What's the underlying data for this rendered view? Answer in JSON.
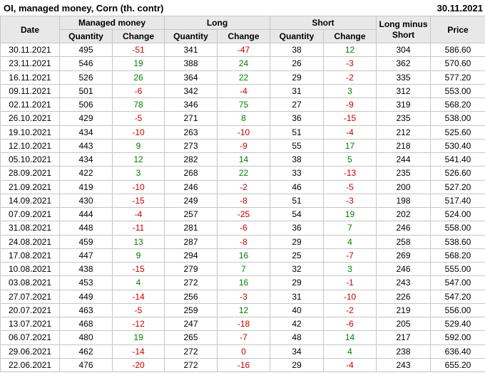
{
  "title": "OI, managed money, Corn (th. contr)",
  "report_date": "30.11.2021",
  "colors": {
    "positive_change": "#008000",
    "negative_change": "#cc0000",
    "header_background": "#e8e8e8",
    "grid_border": "#c6c6c6"
  },
  "header": {
    "date": "Date",
    "managed_money": "Managed money",
    "long": "Long",
    "short": "Short",
    "long_minus_short": "Long minus Short",
    "price": "Price",
    "quantity": "Quantity",
    "change": "Change"
  },
  "rows": [
    {
      "date": "30.11.2021",
      "mm_quantity": "495",
      "mm_change": "-51",
      "long_quantity": "341",
      "long_change": "-47",
      "short_quantity": "38",
      "short_change": "12",
      "long_minus_short": "304",
      "price": "586.60"
    },
    {
      "date": "23.11.2021",
      "mm_quantity": "546",
      "mm_change": "19",
      "long_quantity": "388",
      "long_change": "24",
      "short_quantity": "26",
      "short_change": "-3",
      "long_minus_short": "362",
      "price": "570.60"
    },
    {
      "date": "16.11.2021",
      "mm_quantity": "526",
      "mm_change": "26",
      "long_quantity": "364",
      "long_change": "22",
      "short_quantity": "29",
      "short_change": "-2",
      "long_minus_short": "335",
      "price": "577.20"
    },
    {
      "date": "09.11.2021",
      "mm_quantity": "501",
      "mm_change": "-6",
      "long_quantity": "342",
      "long_change": "-4",
      "short_quantity": "31",
      "short_change": "3",
      "long_minus_short": "312",
      "price": "553.00"
    },
    {
      "date": "02.11.2021",
      "mm_quantity": "506",
      "mm_change": "78",
      "long_quantity": "346",
      "long_change": "75",
      "short_quantity": "27",
      "short_change": "-9",
      "long_minus_short": "319",
      "price": "568.20"
    },
    {
      "date": "26.10.2021",
      "mm_quantity": "429",
      "mm_change": "-5",
      "long_quantity": "271",
      "long_change": "8",
      "short_quantity": "36",
      "short_change": "-15",
      "long_minus_short": "235",
      "price": "538.00"
    },
    {
      "date": "19.10.2021",
      "mm_quantity": "434",
      "mm_change": "-10",
      "long_quantity": "263",
      "long_change": "-10",
      "short_quantity": "51",
      "short_change": "-4",
      "long_minus_short": "212",
      "price": "525.60"
    },
    {
      "date": "12.10.2021",
      "mm_quantity": "443",
      "mm_change": "9",
      "long_quantity": "273",
      "long_change": "-9",
      "short_quantity": "55",
      "short_change": "17",
      "long_minus_short": "218",
      "price": "530.40"
    },
    {
      "date": "05.10.2021",
      "mm_quantity": "434",
      "mm_change": "12",
      "long_quantity": "282",
      "long_change": "14",
      "short_quantity": "38",
      "short_change": "5",
      "long_minus_short": "244",
      "price": "541.40"
    },
    {
      "date": "28.09.2021",
      "mm_quantity": "422",
      "mm_change": "3",
      "long_quantity": "268",
      "long_change": "22",
      "short_quantity": "33",
      "short_change": "-13",
      "long_minus_short": "235",
      "price": "526.60"
    },
    {
      "date": "21.09.2021",
      "mm_quantity": "419",
      "mm_change": "-10",
      "long_quantity": "246",
      "long_change": "-2",
      "short_quantity": "46",
      "short_change": "-5",
      "long_minus_short": "200",
      "price": "527.20"
    },
    {
      "date": "14.09.2021",
      "mm_quantity": "430",
      "mm_change": "-15",
      "long_quantity": "249",
      "long_change": "-8",
      "short_quantity": "51",
      "short_change": "-3",
      "long_minus_short": "198",
      "price": "517.40"
    },
    {
      "date": "07.09.2021",
      "mm_quantity": "444",
      "mm_change": "-4",
      "long_quantity": "257",
      "long_change": "-25",
      "short_quantity": "54",
      "short_change": "19",
      "long_minus_short": "202",
      "price": "524.00"
    },
    {
      "date": "31.08.2021",
      "mm_quantity": "448",
      "mm_change": "-11",
      "long_quantity": "281",
      "long_change": "-6",
      "short_quantity": "36",
      "short_change": "7",
      "long_minus_short": "246",
      "price": "558.00"
    },
    {
      "date": "24.08.2021",
      "mm_quantity": "459",
      "mm_change": "13",
      "long_quantity": "287",
      "long_change": "-8",
      "short_quantity": "29",
      "short_change": "4",
      "long_minus_short": "258",
      "price": "538.60"
    },
    {
      "date": "17.08.2021",
      "mm_quantity": "447",
      "mm_change": "9",
      "long_quantity": "294",
      "long_change": "16",
      "short_quantity": "25",
      "short_change": "-7",
      "long_minus_short": "269",
      "price": "568.20"
    },
    {
      "date": "10.08.2021",
      "mm_quantity": "438",
      "mm_change": "-15",
      "long_quantity": "279",
      "long_change": "7",
      "short_quantity": "32",
      "short_change": "3",
      "long_minus_short": "246",
      "price": "555.00"
    },
    {
      "date": "03.08.2021",
      "mm_quantity": "453",
      "mm_change": "4",
      "long_quantity": "272",
      "long_change": "16",
      "short_quantity": "29",
      "short_change": "-1",
      "long_minus_short": "243",
      "price": "547.00"
    },
    {
      "date": "27.07.2021",
      "mm_quantity": "449",
      "mm_change": "-14",
      "long_quantity": "256",
      "long_change": "-3",
      "short_quantity": "31",
      "short_change": "-10",
      "long_minus_short": "226",
      "price": "547.20"
    },
    {
      "date": "20.07.2021",
      "mm_quantity": "463",
      "mm_change": "-5",
      "long_quantity": "259",
      "long_change": "12",
      "short_quantity": "40",
      "short_change": "-2",
      "long_minus_short": "219",
      "price": "556.00"
    },
    {
      "date": "13.07.2021",
      "mm_quantity": "468",
      "mm_change": "-12",
      "long_quantity": "247",
      "long_change": "-18",
      "short_quantity": "42",
      "short_change": "-6",
      "long_minus_short": "205",
      "price": "529.40"
    },
    {
      "date": "06.07.2021",
      "mm_quantity": "480",
      "mm_change": "19",
      "long_quantity": "265",
      "long_change": "-7",
      "short_quantity": "48",
      "short_change": "14",
      "long_minus_short": "217",
      "price": "592.00"
    },
    {
      "date": "29.06.2021",
      "mm_quantity": "462",
      "mm_change": "-14",
      "long_quantity": "272",
      "long_change": "0",
      "short_quantity": "34",
      "short_change": "4",
      "long_minus_short": "238",
      "price": "636.40"
    },
    {
      "date": "22.06.2021",
      "mm_quantity": "476",
      "mm_change": "-20",
      "long_quantity": "272",
      "long_change": "-16",
      "short_quantity": "29",
      "short_change": "-4",
      "long_minus_short": "243",
      "price": "655.20"
    }
  ]
}
